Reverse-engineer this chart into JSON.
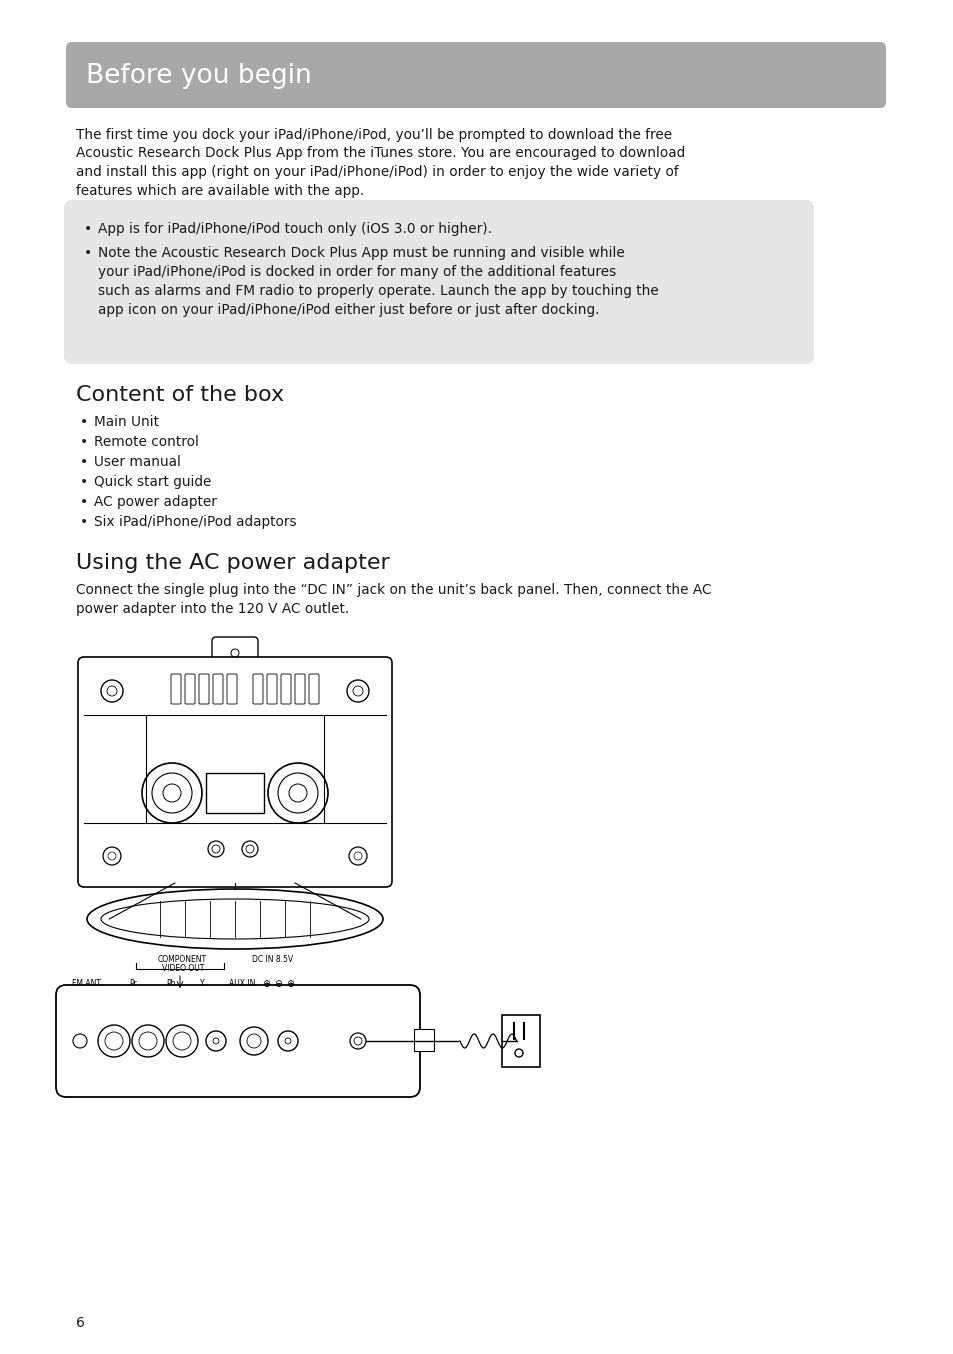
{
  "page_bg": "#ffffff",
  "header_bg": "#a8a8a8",
  "header_text": "Before you begin",
  "header_text_color": "#ffffff",
  "body_text_color": "#1a1a1a",
  "note_box_bg": "#e6e6e6",
  "intro_paragraph": "The first time you dock your iPad/iPhone/iPod, you’ll be prompted to download the free\nAcoustic Research Dock Plus App from the iTunes store. You are encouraged to download\nand install this app (right on your iPad/iPhone/iPod) in order to enjoy the wide variety of\nfeatures which are available with the app.",
  "note_bullet1": "App is for iPad/iPhone/iPod touch only (iOS 3.0 or higher).",
  "note_bullet2_line1": "Note the Acoustic Research Dock Plus App must be running and visible while",
  "note_bullet2_line2": "your iPad/iPhone/iPod is docked in order for many of the additional features",
  "note_bullet2_line3": "such as alarms and FM radio to properly operate. Launch the app by touching the",
  "note_bullet2_line4": "app icon on your iPad/iPhone/iPod either just before or just after docking.",
  "section1_title": "Content of the box",
  "section1_bullets": [
    "Main Unit",
    "Remote control",
    "User manual",
    "Quick start guide",
    "AC power adapter",
    "Six iPad/iPhone/iPod adaptors"
  ],
  "section2_title": "Using the AC power adapter",
  "section2_body_line1": "Connect the single plug into the “DC IN” jack on the unit’s back panel. Then, connect the AC",
  "section2_body_line2": "power adapter into the 120 V AC outlet.",
  "page_number": "6",
  "lm": 76,
  "rm": 876
}
